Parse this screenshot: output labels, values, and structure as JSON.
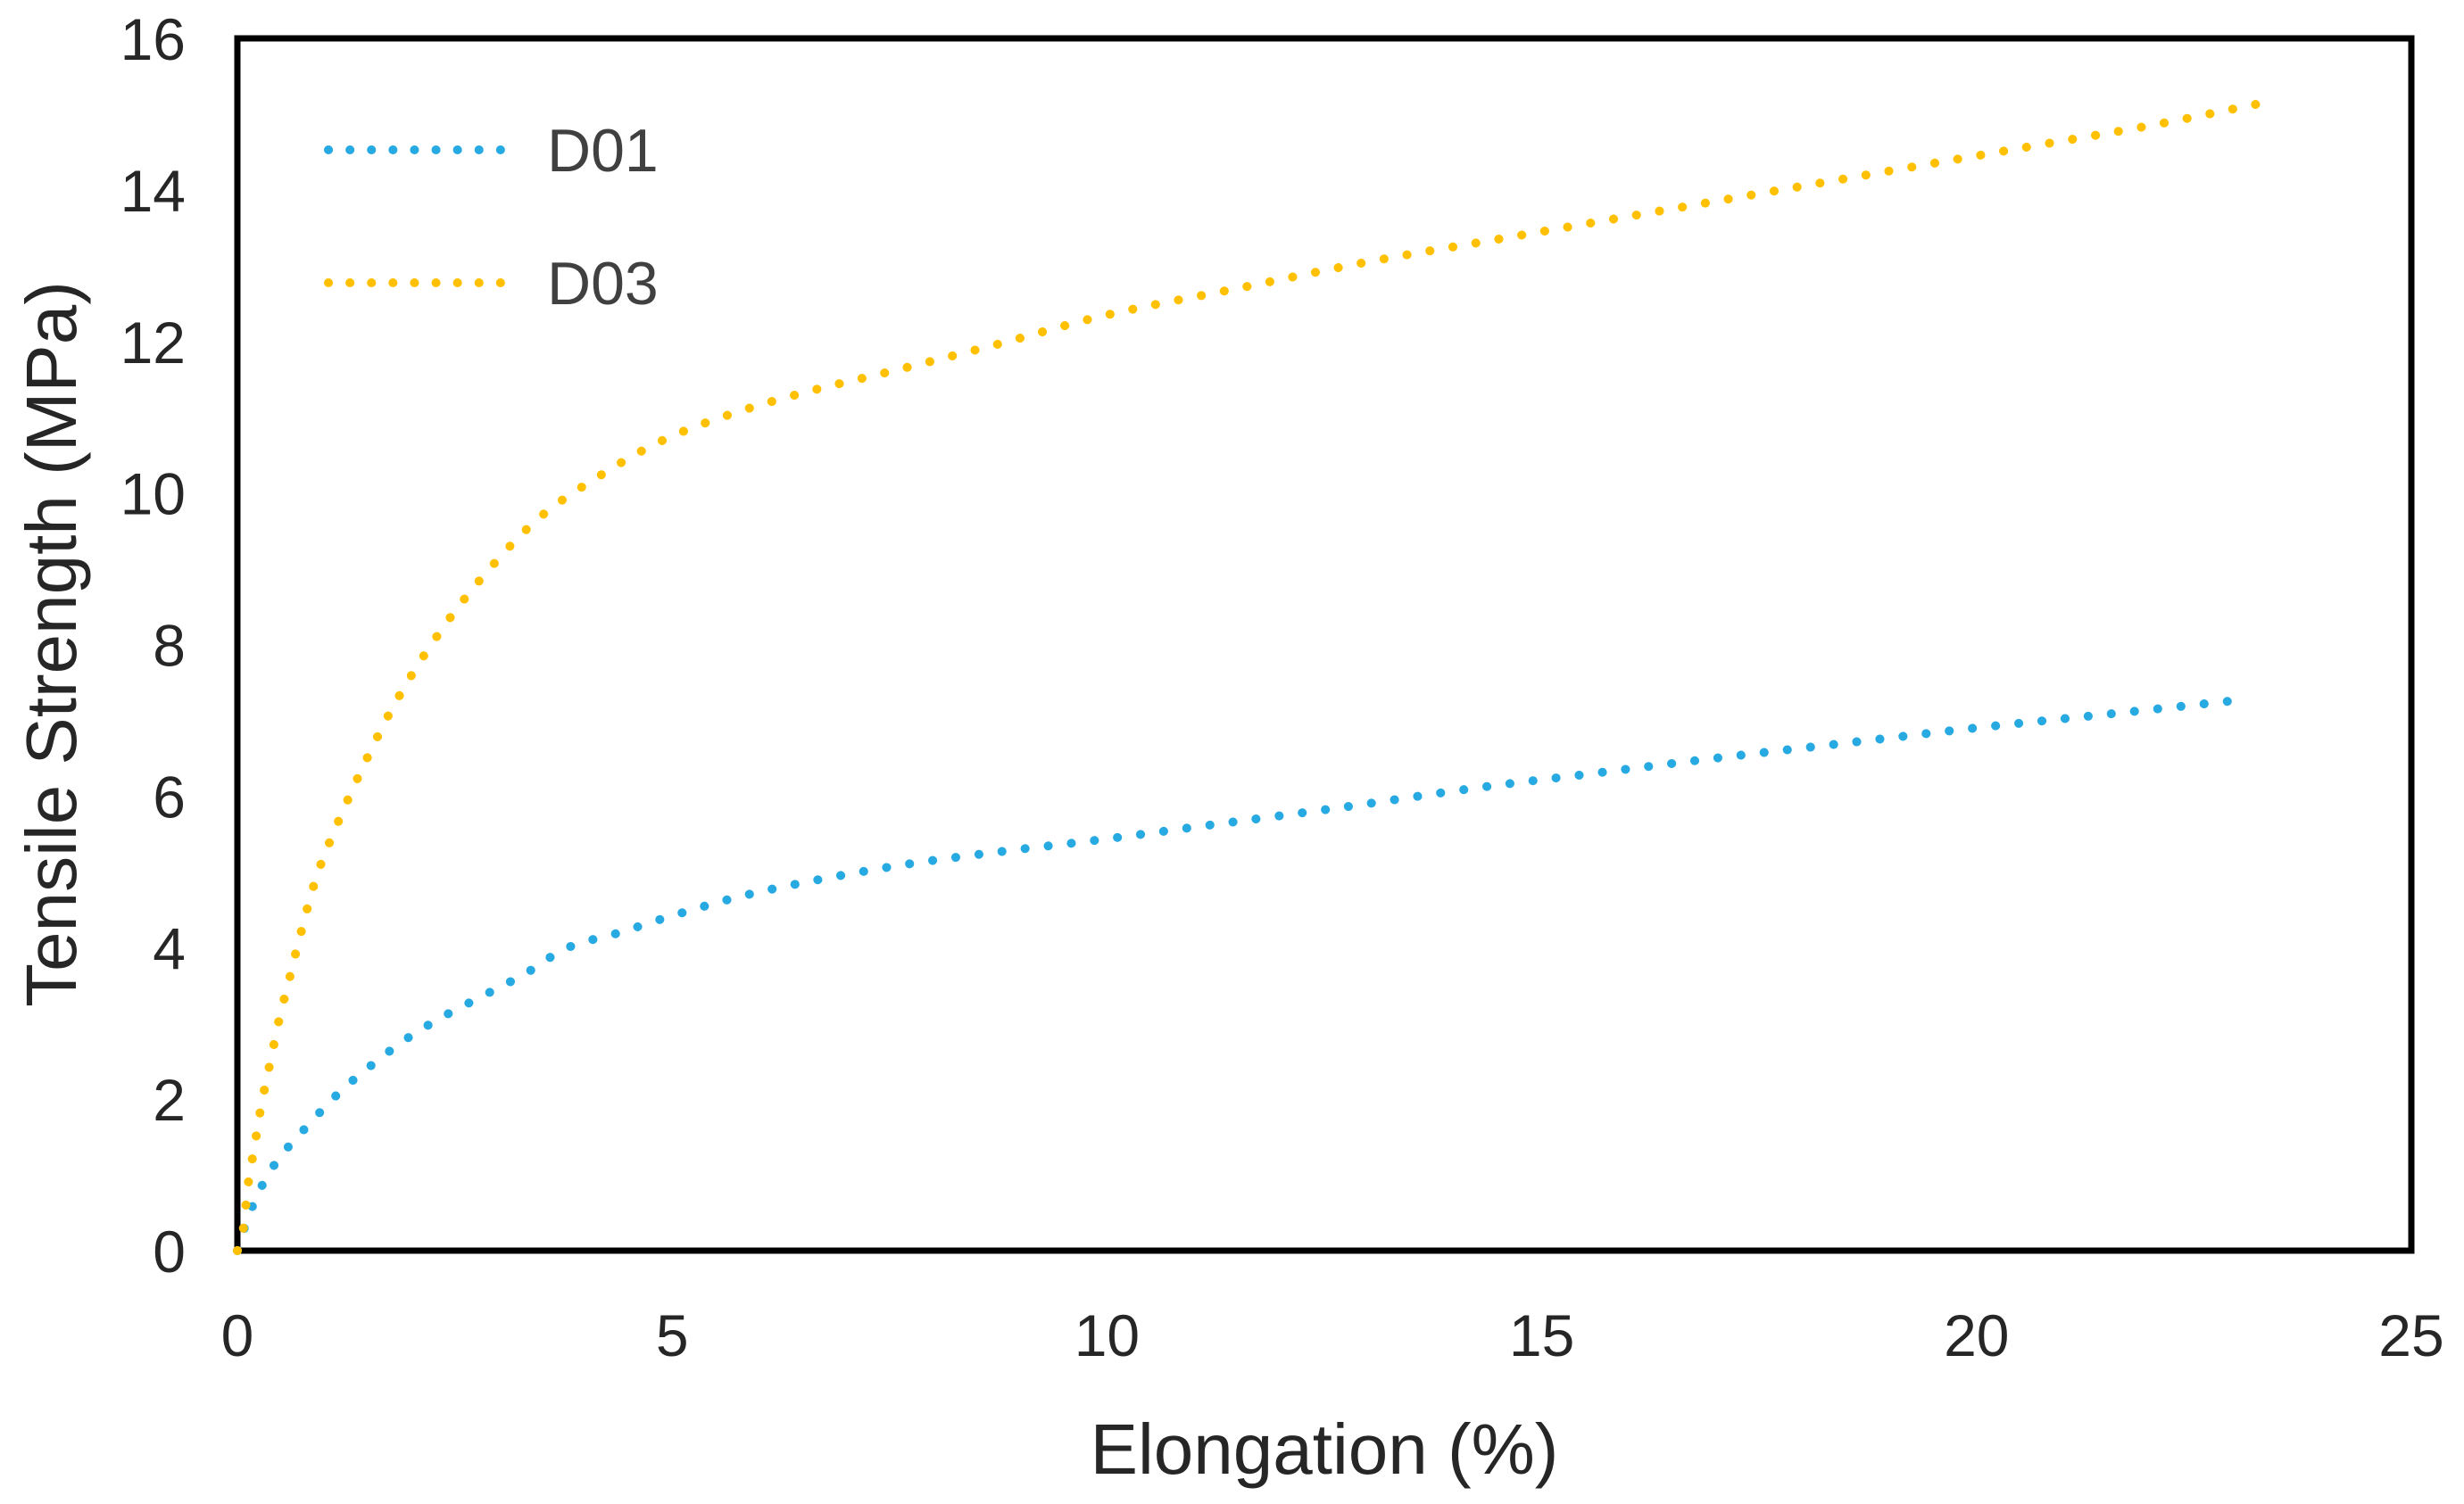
{
  "chart_data": {
    "type": "line",
    "title": "",
    "xlabel": "Elongation (%)",
    "ylabel": "Tensile Strength (MPa)",
    "xlim": [
      0,
      25
    ],
    "ylim": [
      0,
      16
    ],
    "x_ticks": [
      0,
      5,
      10,
      15,
      20,
      25
    ],
    "y_ticks": [
      0,
      2,
      4,
      6,
      8,
      10,
      12,
      14,
      16
    ],
    "grid": false,
    "legend_position": "top-left-inside",
    "line_style": "dotted",
    "plot_border": "full-box",
    "colors": {
      "axis": "#000000",
      "tick_label": "#262626",
      "axis_title": "#262626",
      "legend_text": "#404040",
      "background": "#ffffff"
    },
    "series": [
      {
        "name": "D01",
        "color": "#27A9E1",
        "points": [
          [
            0,
            0
          ],
          [
            0.08,
            0.3
          ],
          [
            0.16,
            0.55
          ],
          [
            0.25,
            0.78
          ],
          [
            0.35,
            1.0
          ],
          [
            0.5,
            1.25
          ],
          [
            0.67,
            1.48
          ],
          [
            0.85,
            1.7
          ],
          [
            1.05,
            1.95
          ],
          [
            1.3,
            2.22
          ],
          [
            1.6,
            2.5
          ],
          [
            1.95,
            2.8
          ],
          [
            2.35,
            3.08
          ],
          [
            2.8,
            3.35
          ],
          [
            3.3,
            3.65
          ],
          [
            3.8,
            4.0
          ],
          [
            4.4,
            4.2
          ],
          [
            5.0,
            4.42
          ],
          [
            5.8,
            4.68
          ],
          [
            6.7,
            4.9
          ],
          [
            7.7,
            5.1
          ],
          [
            8.8,
            5.27
          ],
          [
            9.9,
            5.42
          ],
          [
            11.2,
            5.62
          ],
          [
            12.7,
            5.85
          ],
          [
            14.2,
            6.1
          ],
          [
            15.6,
            6.3
          ],
          [
            17.0,
            6.5
          ],
          [
            18.5,
            6.7
          ],
          [
            20.0,
            6.9
          ],
          [
            21.5,
            7.08
          ],
          [
            23.05,
            7.27
          ]
        ]
      },
      {
        "name": "D03",
        "color": "#FFC000",
        "points": [
          [
            0,
            0
          ],
          [
            0.07,
            0.3
          ],
          [
            0.12,
            0.85
          ],
          [
            0.2,
            1.4
          ],
          [
            0.28,
            1.95
          ],
          [
            0.38,
            2.5
          ],
          [
            0.48,
            3.05
          ],
          [
            0.6,
            3.6
          ],
          [
            0.72,
            4.15
          ],
          [
            0.9,
            4.9
          ],
          [
            1.1,
            5.5
          ],
          [
            1.45,
            6.4
          ],
          [
            1.85,
            7.3
          ],
          [
            2.35,
            8.2
          ],
          [
            2.9,
            9.0
          ],
          [
            3.5,
            9.7
          ],
          [
            4.2,
            10.25
          ],
          [
            4.9,
            10.7
          ],
          [
            5.7,
            11.05
          ],
          [
            6.6,
            11.35
          ],
          [
            7.5,
            11.6
          ],
          [
            8.7,
            11.95
          ],
          [
            10.0,
            12.35
          ],
          [
            11.5,
            12.7
          ],
          [
            13.0,
            13.05
          ],
          [
            14.5,
            13.35
          ],
          [
            16.0,
            13.65
          ],
          [
            17.5,
            13.95
          ],
          [
            19.0,
            14.25
          ],
          [
            20.5,
            14.55
          ],
          [
            22.0,
            14.85
          ],
          [
            23.3,
            15.15
          ]
        ]
      }
    ]
  }
}
